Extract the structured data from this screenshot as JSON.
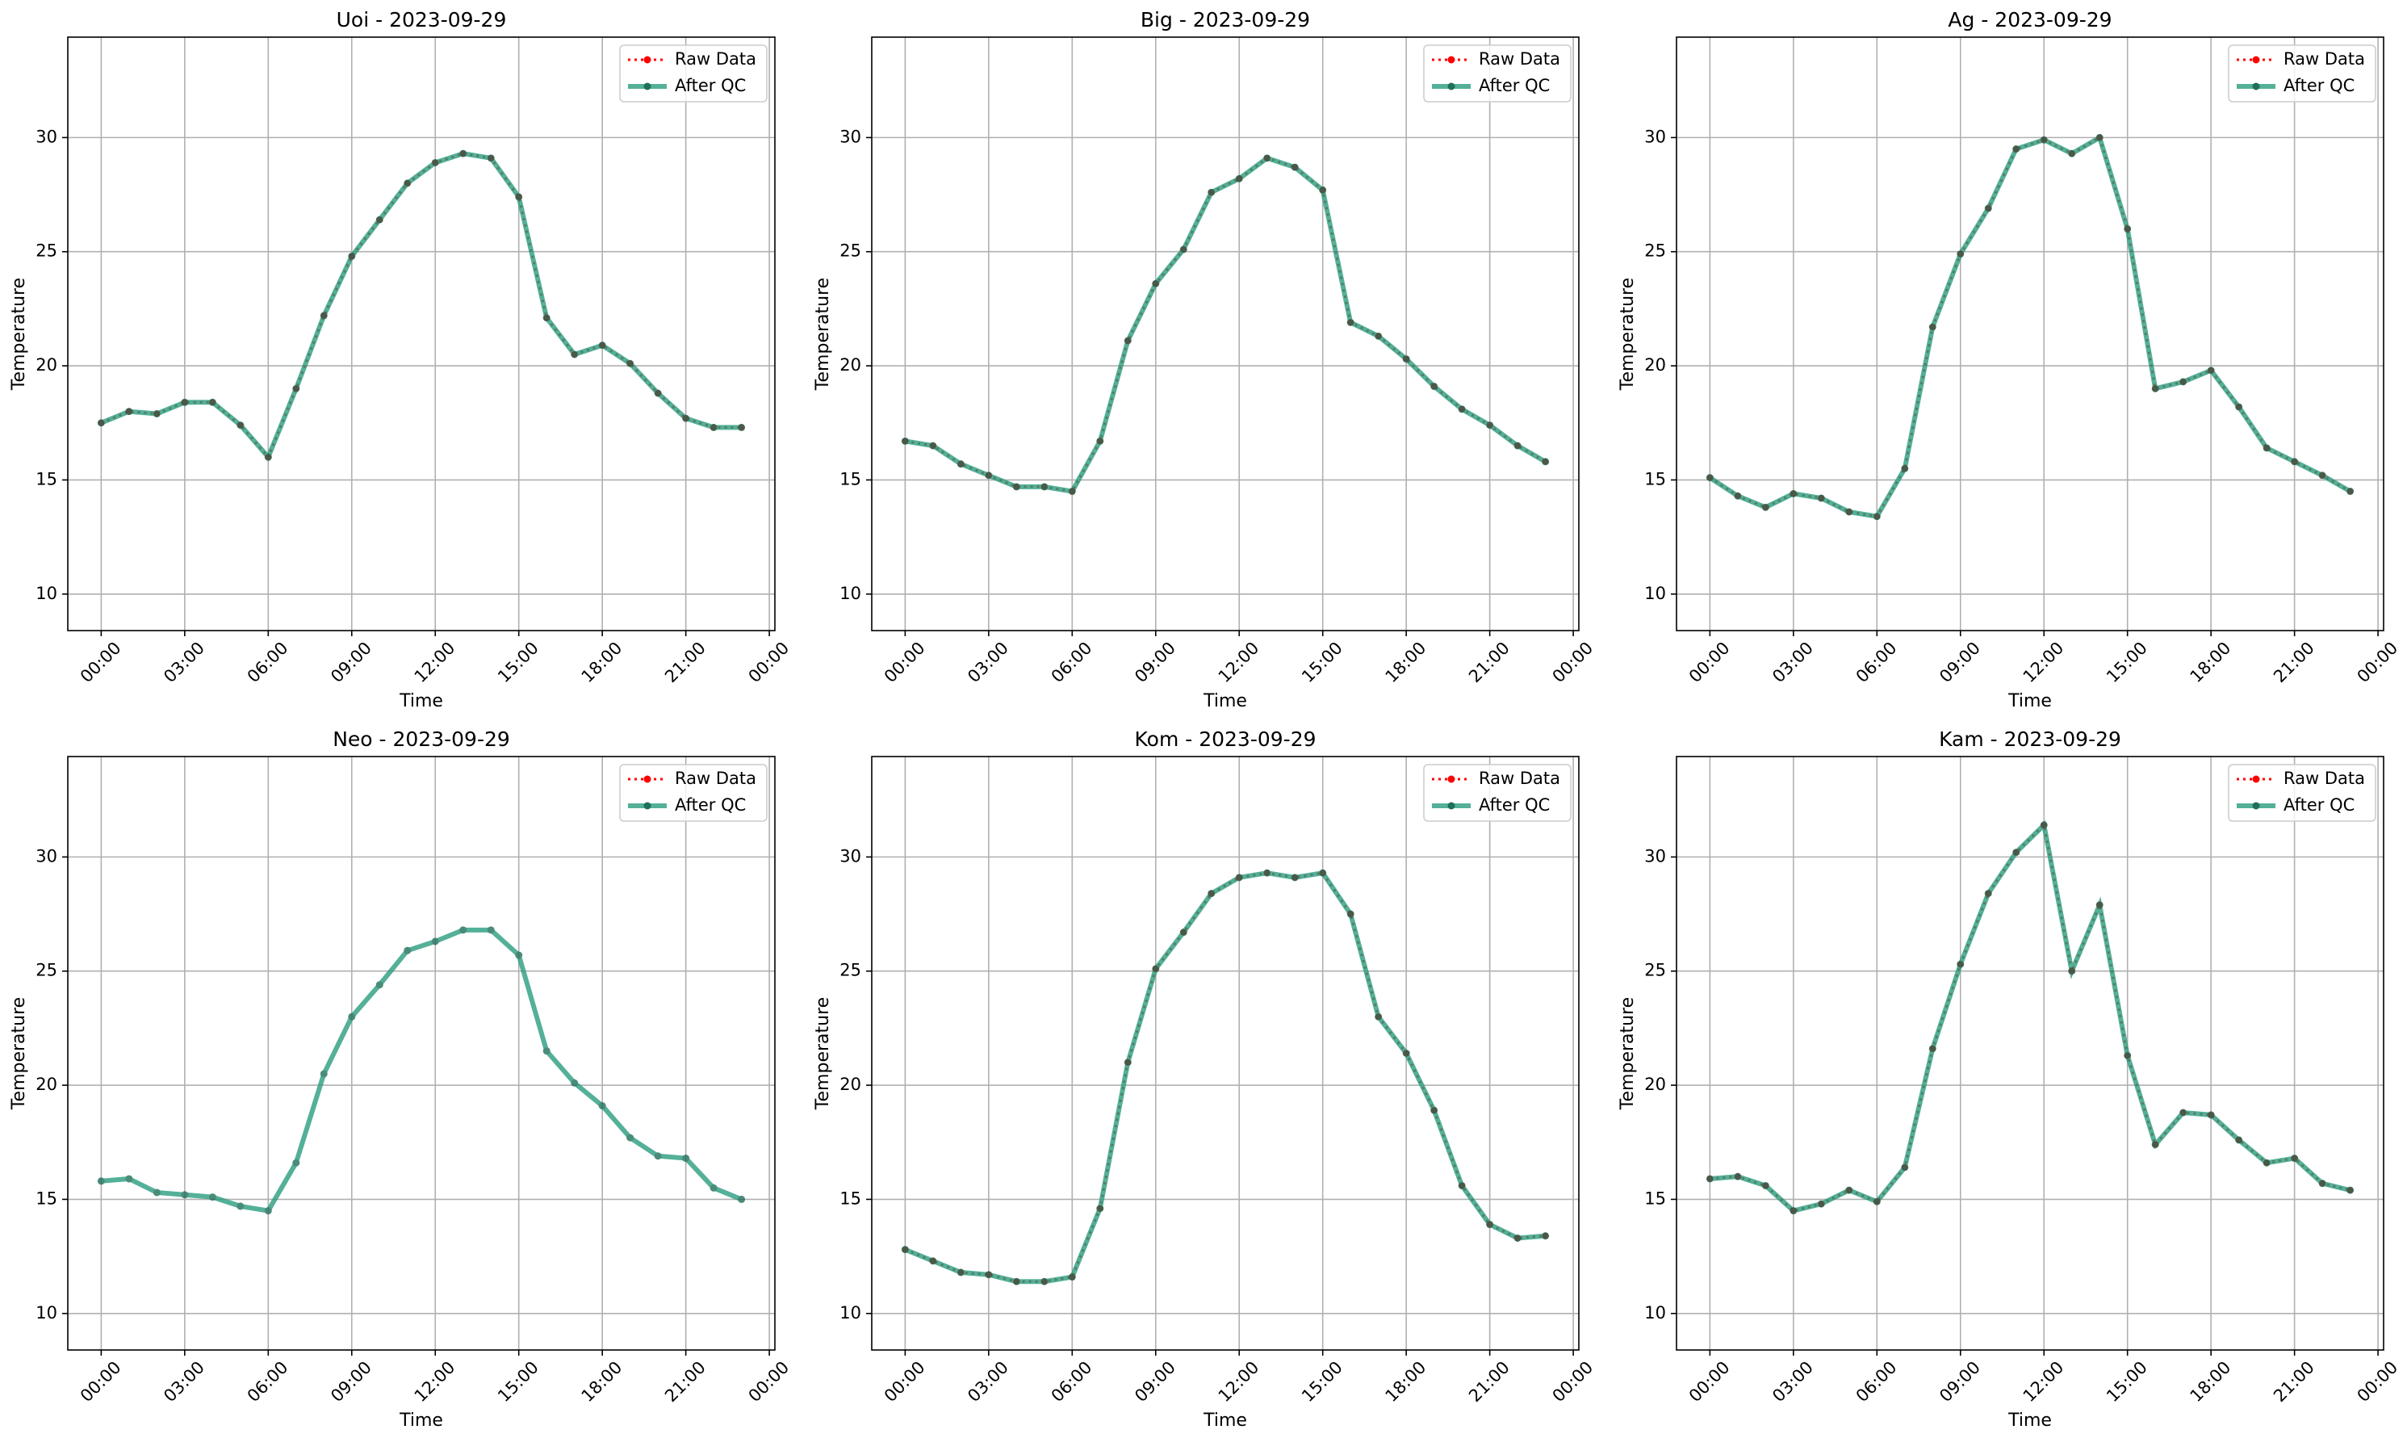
{
  "chart_data": [
    {
      "type": "line",
      "title": "Uoi - 2023-09-29",
      "xlabel": "Time",
      "ylabel": "Temperature",
      "x": [
        0,
        1,
        2,
        3,
        4,
        5,
        6,
        7,
        8,
        9,
        10,
        11,
        12,
        13,
        14,
        15,
        16,
        17,
        18,
        19,
        20,
        21,
        22,
        23
      ],
      "series": [
        {
          "name": "Raw Data",
          "color": "red",
          "values": [
            17.5,
            18.0,
            17.9,
            18.4,
            18.4,
            17.4,
            16.0,
            19.0,
            22.2,
            24.8,
            26.4,
            28.0,
            28.9,
            29.3,
            29.1,
            27.4,
            22.1,
            20.5,
            20.9,
            20.1,
            18.8,
            17.7,
            17.3,
            17.3
          ]
        },
        {
          "name": "After QC",
          "color": "#2a9d7f",
          "values": [
            17.5,
            18.0,
            17.9,
            18.4,
            18.4,
            17.4,
            16.0,
            19.0,
            22.2,
            24.8,
            26.4,
            28.0,
            28.9,
            29.3,
            29.1,
            27.4,
            22.1,
            20.5,
            20.9,
            20.1,
            18.8,
            17.7,
            17.3,
            17.3
          ]
        }
      ],
      "xlim": [
        -1.2,
        24.2
      ],
      "ylim": [
        8.4,
        34.4
      ],
      "xticks": [
        {
          "value": 0,
          "label": "00:00"
        },
        {
          "value": 3,
          "label": "03:00"
        },
        {
          "value": 6,
          "label": "06:00"
        },
        {
          "value": 9,
          "label": "09:00"
        },
        {
          "value": 12,
          "label": "12:00"
        },
        {
          "value": 15,
          "label": "15:00"
        },
        {
          "value": 18,
          "label": "18:00"
        },
        {
          "value": 21,
          "label": "21:00"
        },
        {
          "value": 24,
          "label": "00:00"
        }
      ],
      "yticks": [
        10,
        15,
        20,
        25,
        30
      ],
      "grid": true,
      "legend": "upper right"
    },
    {
      "type": "line",
      "title": "Big - 2023-09-29",
      "xlabel": "Time",
      "ylabel": "Temperature",
      "x": [
        0,
        1,
        2,
        3,
        4,
        5,
        6,
        7,
        8,
        9,
        10,
        11,
        12,
        13,
        14,
        15,
        16,
        17,
        18,
        19,
        20,
        21,
        22,
        23
      ],
      "series": [
        {
          "name": "Raw Data",
          "color": "red",
          "values": [
            16.7,
            16.5,
            15.7,
            15.2,
            14.7,
            14.7,
            14.5,
            16.7,
            21.1,
            23.6,
            25.1,
            27.6,
            28.2,
            29.1,
            28.7,
            27.7,
            21.9,
            21.3,
            20.3,
            19.1,
            18.1,
            17.4,
            16.5,
            15.8
          ]
        },
        {
          "name": "After QC",
          "color": "#2a9d7f",
          "values": [
            16.7,
            16.5,
            15.7,
            15.2,
            14.7,
            14.7,
            14.5,
            16.7,
            21.1,
            23.6,
            25.1,
            27.6,
            28.2,
            29.1,
            28.7,
            27.7,
            21.9,
            21.3,
            20.3,
            19.1,
            18.1,
            17.4,
            16.5,
            15.8
          ]
        }
      ],
      "xlim": [
        -1.2,
        24.2
      ],
      "ylim": [
        8.4,
        34.4
      ],
      "xticks": [
        {
          "value": 0,
          "label": "00:00"
        },
        {
          "value": 3,
          "label": "03:00"
        },
        {
          "value": 6,
          "label": "06:00"
        },
        {
          "value": 9,
          "label": "09:00"
        },
        {
          "value": 12,
          "label": "12:00"
        },
        {
          "value": 15,
          "label": "15:00"
        },
        {
          "value": 18,
          "label": "18:00"
        },
        {
          "value": 21,
          "label": "21:00"
        },
        {
          "value": 24,
          "label": "00:00"
        }
      ],
      "yticks": [
        10,
        15,
        20,
        25,
        30
      ],
      "grid": true,
      "legend": "upper right"
    },
    {
      "type": "line",
      "title": "Ag - 2023-09-29",
      "xlabel": "Time",
      "ylabel": "Temperature",
      "x": [
        0,
        1,
        2,
        3,
        4,
        5,
        6,
        7,
        8,
        9,
        10,
        11,
        12,
        13,
        14,
        15,
        16,
        17,
        18,
        19,
        20,
        21,
        22,
        23
      ],
      "series": [
        {
          "name": "Raw Data",
          "color": "red",
          "values": [
            15.1,
            14.3,
            13.8,
            14.4,
            14.2,
            13.6,
            13.4,
            15.5,
            21.7,
            24.9,
            26.9,
            29.5,
            29.9,
            29.3,
            30.0,
            26.0,
            19.0,
            19.3,
            19.8,
            18.2,
            16.4,
            15.8,
            15.2,
            14.5
          ]
        },
        {
          "name": "After QC",
          "color": "#2a9d7f",
          "values": [
            15.1,
            14.3,
            13.8,
            14.4,
            14.2,
            13.6,
            13.4,
            15.5,
            21.7,
            24.9,
            26.9,
            29.5,
            29.9,
            29.3,
            30.0,
            26.0,
            19.0,
            19.3,
            19.8,
            18.2,
            16.4,
            15.8,
            15.2,
            14.5
          ]
        }
      ],
      "xlim": [
        -1.2,
        24.2
      ],
      "ylim": [
        8.4,
        34.4
      ],
      "xticks": [
        {
          "value": 0,
          "label": "00:00"
        },
        {
          "value": 3,
          "label": "03:00"
        },
        {
          "value": 6,
          "label": "06:00"
        },
        {
          "value": 9,
          "label": "09:00"
        },
        {
          "value": 12,
          "label": "12:00"
        },
        {
          "value": 15,
          "label": "15:00"
        },
        {
          "value": 18,
          "label": "18:00"
        },
        {
          "value": 21,
          "label": "21:00"
        },
        {
          "value": 24,
          "label": "00:00"
        }
      ],
      "yticks": [
        10,
        15,
        20,
        25,
        30
      ],
      "grid": true,
      "legend": "upper right"
    },
    {
      "type": "line",
      "title": "Neo - 2023-09-29",
      "xlabel": "Time",
      "ylabel": "Temperature",
      "x": [
        0,
        1,
        2,
        3,
        4,
        5,
        6,
        7,
        8,
        9,
        10,
        11,
        12,
        13,
        14,
        15,
        16,
        17,
        18,
        19,
        20,
        21,
        22,
        23
      ],
      "series": [
        {
          "name": "Raw Data",
          "color": "red",
          "values": [
            null,
            null,
            null,
            null,
            null,
            null,
            null,
            null,
            null,
            null,
            null,
            null,
            null,
            null,
            null,
            null,
            null,
            null,
            null,
            null,
            null,
            null,
            null,
            null
          ]
        },
        {
          "name": "After QC",
          "color": "#2a9d7f",
          "values": [
            15.8,
            15.9,
            15.3,
            15.2,
            15.1,
            14.7,
            14.5,
            16.6,
            20.5,
            23.0,
            24.4,
            25.9,
            26.3,
            26.8,
            26.8,
            25.7,
            21.5,
            20.1,
            19.1,
            17.7,
            16.9,
            16.8,
            15.5,
            15.0
          ]
        }
      ],
      "xlim": [
        -1.2,
        24.2
      ],
      "ylim": [
        8.4,
        34.4
      ],
      "xticks": [
        {
          "value": 0,
          "label": "00:00"
        },
        {
          "value": 3,
          "label": "03:00"
        },
        {
          "value": 6,
          "label": "06:00"
        },
        {
          "value": 9,
          "label": "09:00"
        },
        {
          "value": 12,
          "label": "12:00"
        },
        {
          "value": 15,
          "label": "15:00"
        },
        {
          "value": 18,
          "label": "18:00"
        },
        {
          "value": 21,
          "label": "21:00"
        },
        {
          "value": 24,
          "label": "00:00"
        }
      ],
      "yticks": [
        10,
        15,
        20,
        25,
        30
      ],
      "grid": true,
      "legend": "upper right"
    },
    {
      "type": "line",
      "title": "Kom - 2023-09-29",
      "xlabel": "Time",
      "ylabel": "Temperature",
      "x": [
        0,
        1,
        2,
        3,
        4,
        5,
        6,
        7,
        8,
        9,
        10,
        11,
        12,
        13,
        14,
        15,
        16,
        17,
        18,
        19,
        20,
        21,
        22,
        23
      ],
      "series": [
        {
          "name": "Raw Data",
          "color": "red",
          "values": [
            12.8,
            12.3,
            11.8,
            11.7,
            11.4,
            11.4,
            11.6,
            14.6,
            21.0,
            25.1,
            26.7,
            28.4,
            29.1,
            29.3,
            29.1,
            29.3,
            27.5,
            23.0,
            21.4,
            18.9,
            15.6,
            13.9,
            13.3,
            13.4
          ]
        },
        {
          "name": "After QC",
          "color": "#2a9d7f",
          "values": [
            12.8,
            12.3,
            11.8,
            11.7,
            11.4,
            11.4,
            11.6,
            14.6,
            21.0,
            25.1,
            26.7,
            28.4,
            29.1,
            29.3,
            29.1,
            29.3,
            27.5,
            23.0,
            21.4,
            18.9,
            15.6,
            13.9,
            13.3,
            13.4
          ]
        }
      ],
      "xlim": [
        -1.2,
        24.2
      ],
      "ylim": [
        8.4,
        34.4
      ],
      "xticks": [
        {
          "value": 0,
          "label": "00:00"
        },
        {
          "value": 3,
          "label": "03:00"
        },
        {
          "value": 6,
          "label": "06:00"
        },
        {
          "value": 9,
          "label": "09:00"
        },
        {
          "value": 12,
          "label": "12:00"
        },
        {
          "value": 15,
          "label": "15:00"
        },
        {
          "value": 18,
          "label": "18:00"
        },
        {
          "value": 21,
          "label": "21:00"
        },
        {
          "value": 24,
          "label": "00:00"
        }
      ],
      "yticks": [
        10,
        15,
        20,
        25,
        30
      ],
      "grid": true,
      "legend": "upper right"
    },
    {
      "type": "line",
      "title": "Kam - 2023-09-29",
      "xlabel": "Time",
      "ylabel": "Temperature",
      "x": [
        0,
        1,
        2,
        3,
        4,
        5,
        6,
        7,
        8,
        9,
        10,
        11,
        12,
        13,
        14,
        15,
        16,
        17,
        18,
        19,
        20,
        21,
        22,
        23
      ],
      "series": [
        {
          "name": "Raw Data",
          "color": "red",
          "values": [
            15.9,
            16.0,
            15.6,
            14.5,
            14.8,
            15.4,
            14.9,
            16.4,
            21.6,
            25.3,
            28.4,
            30.2,
            31.4,
            25.0,
            27.9,
            21.3,
            17.4,
            18.8,
            18.7,
            17.6,
            16.6,
            16.8,
            15.7,
            15.4
          ]
        },
        {
          "name": "After QC",
          "color": "#2a9d7f",
          "values": [
            15.9,
            16.0,
            15.6,
            14.5,
            14.8,
            15.4,
            14.9,
            16.4,
            21.6,
            25.3,
            28.4,
            30.2,
            31.4,
            25.0,
            27.9,
            21.3,
            17.4,
            18.8,
            18.7,
            17.6,
            16.6,
            16.8,
            15.7,
            15.4
          ]
        }
      ],
      "xlim": [
        -1.2,
        24.2
      ],
      "ylim": [
        8.4,
        34.4
      ],
      "xticks": [
        {
          "value": 0,
          "label": "00:00"
        },
        {
          "value": 3,
          "label": "03:00"
        },
        {
          "value": 6,
          "label": "06:00"
        },
        {
          "value": 9,
          "label": "09:00"
        },
        {
          "value": 12,
          "label": "12:00"
        },
        {
          "value": 15,
          "label": "15:00"
        },
        {
          "value": 18,
          "label": "18:00"
        },
        {
          "value": 21,
          "label": "21:00"
        },
        {
          "value": 24,
          "label": "00:00"
        }
      ],
      "yticks": [
        10,
        15,
        20,
        25,
        30
      ],
      "grid": true,
      "legend": "upper right"
    }
  ]
}
